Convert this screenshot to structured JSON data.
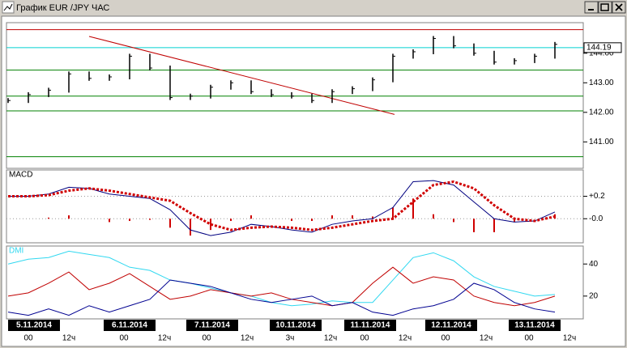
{
  "window": {
    "title": "График EUR /JPY ЧАС"
  },
  "chart_data": [
    {
      "type": "bar",
      "color": "#000000",
      "values": [
        142.4,
        142.6,
        142.75,
        143.3,
        143.15,
        143.2,
        143.9,
        143.5,
        142.5,
        142.55,
        142.85,
        143.0,
        142.7,
        142.6,
        142.55,
        142.4,
        142.7,
        142.8,
        143.1,
        143.9,
        144.05,
        144.5,
        144.25,
        144.0,
        143.7,
        143.75,
        143.9,
        144.3
      ],
      "ylim": [
        140.16,
        144.98
      ],
      "yticks": [
        {
          "value": 144,
          "label": "144.00"
        },
        {
          "value": 143,
          "label": "143.00"
        },
        {
          "value": 142,
          "label": "142.00"
        },
        {
          "value": 141,
          "label": "141.00"
        }
      ],
      "levels": [
        {
          "value": 144.8,
          "color": "#c00000"
        },
        {
          "value": 143.43,
          "color": "#008000"
        },
        {
          "value": 142.55,
          "color": "#008000"
        },
        {
          "value": 142.05,
          "color": "#008000"
        },
        {
          "value": 140.5,
          "color": "#008000"
        }
      ],
      "current": {
        "value": 144.19,
        "label": "144.19",
        "color": "#00d0d0"
      },
      "trendline": {
        "values": [
          144.57,
          141.93
        ],
        "color": "#c00000"
      }
    },
    {
      "type": "macd",
      "title": "MACD",
      "ylim": [
        -0.2,
        0.42
      ],
      "yticks": [
        {
          "value": 0.2,
          "label": "+0.2"
        },
        {
          "value": 0,
          "label": "-0.0"
        }
      ],
      "series": [
        {
          "color": "#000080",
          "values": [
            0.2,
            0.2,
            0.22,
            0.28,
            0.27,
            0.22,
            0.2,
            0.18,
            0.08,
            -0.1,
            -0.15,
            -0.12,
            -0.05,
            -0.07,
            -0.1,
            -0.12,
            -0.05,
            -0.02,
            0.0,
            0.1,
            0.33,
            0.34,
            0.3,
            0.15,
            0.0,
            -0.03,
            -0.02,
            0.06
          ]
        },
        {
          "color": "#d00000",
          "values": [
            0.2,
            0.2,
            0.21,
            0.25,
            0.27,
            0.25,
            0.22,
            0.19,
            0.16,
            0.05,
            -0.05,
            -0.1,
            -0.08,
            -0.07,
            -0.08,
            -0.1,
            -0.08,
            -0.05,
            -0.02,
            0.0,
            0.15,
            0.3,
            0.33,
            0.27,
            0.12,
            0.0,
            -0.02,
            0.02
          ]
        },
        {
          "color": "#d00000",
          "values": [
            0,
            0,
            0.01,
            0.03,
            0,
            -0.03,
            -0.02,
            -0.01,
            -0.08,
            -0.15,
            -0.1,
            -0.02,
            0.03,
            0,
            -0.02,
            -0.02,
            0.03,
            0.03,
            0.02,
            0.1,
            0.18,
            0.04,
            -0.03,
            -0.12,
            -0.12,
            -0.03,
            0,
            0.04
          ]
        }
      ]
    },
    {
      "type": "line",
      "title": "DMI",
      "ylim": [
        6.8,
        50.2
      ],
      "yticks": [
        40,
        20
      ],
      "series": [
        {
          "color": "#30d8f0",
          "values": [
            40,
            43,
            44,
            48,
            46,
            44,
            38,
            36,
            30,
            28,
            25,
            22,
            20,
            16,
            14,
            15,
            17,
            16,
            16,
            30,
            44,
            47,
            42,
            32,
            26,
            23,
            20,
            21
          ]
        },
        {
          "color": "#c00000",
          "values": [
            20,
            22,
            28,
            35,
            24,
            28,
            34,
            26,
            18,
            20,
            24,
            22,
            20,
            22,
            18,
            16,
            14,
            16,
            28,
            38,
            28,
            32,
            30,
            20,
            16,
            14,
            16,
            20
          ]
        },
        {
          "color": "#000090",
          "values": [
            10,
            8,
            12,
            8,
            14,
            10,
            14,
            18,
            30,
            28,
            26,
            22,
            18,
            16,
            18,
            20,
            14,
            16,
            10,
            8,
            12,
            14,
            18,
            28,
            24,
            16,
            12,
            10
          ]
        }
      ]
    }
  ],
  "dates": [
    {
      "label": "5.11.2014",
      "hours": [
        "00",
        "12ч"
      ]
    },
    {
      "label": "6.11.2014",
      "hours": [
        "00",
        "12ч"
      ]
    },
    {
      "label": "7.11.2014",
      "hours": [
        "00",
        "12ч"
      ]
    },
    {
      "label": "10.11.2014",
      "hours": [
        "3ч",
        "12ч"
      ]
    },
    {
      "label": "11.11.2014",
      "hours": [
        "00",
        "12ч"
      ]
    },
    {
      "label": "12.11.2014",
      "hours": [
        "00",
        "12ч"
      ]
    },
    {
      "label": "13.11.2014",
      "hours": [
        "00",
        "12ч"
      ]
    }
  ]
}
